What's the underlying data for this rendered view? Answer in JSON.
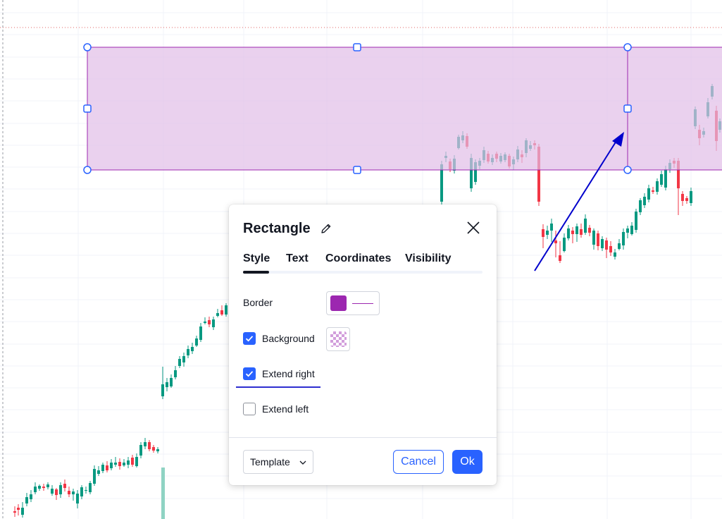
{
  "colors": {
    "up": "#089981",
    "down": "#f23645",
    "rect_border": "#9c27b0",
    "rect_fill": "#e1bee7",
    "arrow": "#0000cc",
    "handle": "#2962ff",
    "accent": "#2962ff",
    "volume": "#8fd3c3"
  },
  "chart": {
    "candles": [
      [
        21,
        725,
        727,
        718,
        733
      ],
      [
        26,
        720,
        723,
        715,
        731
      ],
      [
        32,
        730,
        720,
        712,
        734
      ],
      [
        38,
        714,
        705,
        699,
        718
      ],
      [
        44,
        708,
        701,
        695,
        712
      ],
      [
        50,
        698,
        690,
        684,
        701
      ],
      [
        56,
        693,
        689,
        687,
        696
      ],
      [
        62,
        690,
        692,
        686,
        696
      ],
      [
        68,
        691,
        687,
        684,
        694
      ],
      [
        74,
        700,
        693,
        688,
        703
      ],
      [
        80,
        694,
        702,
        692,
        709
      ],
      [
        86,
        701,
        688,
        684,
        706
      ],
      [
        92,
        686,
        692,
        680,
        697
      ],
      [
        98,
        696,
        701,
        690,
        705
      ],
      [
        104,
        701,
        697,
        693,
        710
      ],
      [
        110,
        714,
        700,
        695,
        721
      ],
      [
        116,
        704,
        691,
        688,
        708
      ],
      [
        122,
        696,
        695,
        690,
        700
      ],
      [
        128,
        698,
        685,
        682,
        701
      ],
      [
        134,
        686,
        665,
        660,
        689
      ],
      [
        140,
        672,
        667,
        661,
        675
      ],
      [
        146,
        668,
        659,
        656,
        671
      ],
      [
        152,
        660,
        667,
        654,
        670
      ],
      [
        158,
        664,
        656,
        651,
        667
      ],
      [
        164,
        659,
        656,
        648,
        662
      ],
      [
        170,
        655,
        661,
        650,
        666
      ],
      [
        176,
        660,
        656,
        651,
        662
      ],
      [
        182,
        659,
        653,
        648,
        664
      ],
      [
        188,
        649,
        659,
        645,
        662
      ],
      [
        194,
        661,
        648,
        643,
        663
      ],
      [
        200,
        646,
        631,
        627,
        650
      ],
      [
        206,
        633,
        627,
        621,
        637
      ],
      [
        212,
        627,
        637,
        624,
        640
      ],
      [
        218,
        634,
        639,
        631,
        642
      ],
      [
        224,
        640,
        637,
        634,
        643
      ],
      [
        231,
        562,
        545,
        520,
        566
      ],
      [
        237,
        549,
        542,
        536,
        555
      ],
      [
        243,
        548,
        536,
        531,
        550
      ],
      [
        249,
        535,
        525,
        519,
        538
      ],
      [
        255,
        519,
        509,
        505,
        522
      ],
      [
        261,
        514,
        505,
        500,
        520
      ],
      [
        267,
        504,
        495,
        490,
        508
      ],
      [
        273,
        498,
        492,
        486,
        502
      ],
      [
        279,
        490,
        480,
        476,
        492
      ],
      [
        285,
        482,
        463,
        458,
        485
      ],
      [
        291,
        458,
        456,
        450,
        460
      ],
      [
        297,
        454,
        460,
        449,
        464
      ],
      [
        303,
        464,
        453,
        449,
        468
      ],
      [
        309,
        448,
        444,
        438,
        450
      ],
      [
        315,
        440,
        446,
        433,
        448
      ],
      [
        321,
        446,
        433,
        430,
        449
      ],
      [
        627,
        286,
        233,
        228,
        291
      ],
      [
        633,
        224,
        221,
        215,
        230
      ],
      [
        639,
        229,
        240,
        225,
        244
      ],
      [
        645,
        242,
        225,
        220,
        246
      ],
      [
        651,
        210,
        194,
        191,
        212
      ],
      [
        657,
        199,
        192,
        186,
        203
      ],
      [
        663,
        193,
        208,
        189,
        211
      ],
      [
        669,
        267,
        224,
        218,
        272
      ],
      [
        675,
        258,
        230,
        226,
        262
      ],
      [
        681,
        235,
        228,
        224,
        240
      ],
      [
        687,
        227,
        213,
        208,
        231
      ],
      [
        693,
        218,
        229,
        214,
        232
      ],
      [
        699,
        230,
        224,
        219,
        234
      ],
      [
        705,
        218,
        225,
        215,
        230
      ],
      [
        711,
        229,
        221,
        217,
        232
      ],
      [
        717,
        227,
        219,
        216,
        230
      ],
      [
        723,
        221,
        236,
        218,
        239
      ],
      [
        729,
        233,
        226,
        222,
        241
      ],
      [
        735,
        226,
        212,
        207,
        230
      ],
      [
        741,
        219,
        223,
        213,
        231
      ],
      [
        747,
        217,
        199,
        196,
        223
      ],
      [
        753,
        211,
        206,
        200,
        214
      ],
      [
        759,
        203,
        206,
        199,
        212
      ],
      [
        765,
        208,
        286,
        204,
        292
      ],
      [
        771,
        325,
        336,
        318,
        352
      ],
      [
        777,
        333,
        327,
        320,
        339
      ],
      [
        783,
        327,
        317,
        310,
        343
      ],
      [
        789,
        341,
        345,
        327,
        365
      ],
      [
        795,
        362,
        370,
        342,
        373
      ],
      [
        801,
        356,
        337,
        331,
        358
      ],
      [
        807,
        338,
        324,
        319,
        341
      ],
      [
        813,
        327,
        332,
        322,
        345
      ],
      [
        819,
        332,
        321,
        317,
        343
      ],
      [
        825,
        325,
        333,
        317,
        337
      ],
      [
        831,
        330,
        310,
        304,
        333
      ],
      [
        837,
        323,
        330,
        319,
        335
      ],
      [
        843,
        347,
        327,
        324,
        354
      ],
      [
        849,
        331,
        349,
        327,
        355
      ],
      [
        855,
        352,
        339,
        335,
        356
      ],
      [
        861,
        341,
        354,
        337,
        366
      ],
      [
        867,
        349,
        358,
        342,
        363
      ],
      [
        873,
        364,
        358,
        353,
        368
      ],
      [
        879,
        353,
        345,
        339,
        355
      ],
      [
        885,
        348,
        329,
        324,
        354
      ],
      [
        891,
        330,
        324,
        320,
        338
      ],
      [
        897,
        332,
        320,
        315,
        334
      ],
      [
        903,
        326,
        300,
        296,
        330
      ],
      [
        909,
        301,
        284,
        281,
        305
      ],
      [
        915,
        291,
        279,
        274,
        295
      ],
      [
        921,
        283,
        267,
        262,
        287
      ],
      [
        927,
        270,
        272,
        265,
        275
      ],
      [
        933,
        272,
        257,
        253,
        276
      ],
      [
        939,
        262,
        247,
        242,
        265
      ],
      [
        945,
        266,
        240,
        235,
        270
      ],
      [
        951,
        240,
        231,
        226,
        245
      ],
      [
        957,
        228,
        232,
        224,
        238
      ],
      [
        963,
        228,
        267,
        224,
        305
      ],
      [
        969,
        275,
        285,
        271,
        292
      ],
      [
        975,
        281,
        285,
        278,
        289
      ],
      [
        981,
        288,
        271,
        266,
        292
      ],
      [
        987,
        179,
        155,
        151,
        183
      ],
      [
        993,
        184,
        196,
        177,
        206
      ],
      [
        999,
        191,
        186,
        181,
        195
      ],
      [
        1005,
        165,
        145,
        139,
        168
      ],
      [
        1011,
        137,
        122,
        119,
        141
      ],
      [
        1017,
        157,
        200,
        150,
        214
      ],
      [
        1022,
        184,
        172,
        168,
        188
      ]
    ],
    "volume_bar": {
      "value": 1
    }
  },
  "drawing": {
    "handles": 6
  },
  "dialog": {
    "title": "Rectangle",
    "tabs": [
      "Style",
      "Text",
      "Coordinates",
      "Visibility"
    ],
    "active_tab": "Style",
    "border_label": "Border",
    "background_label": "Background",
    "background_checked": true,
    "extend_right_label": "Extend right",
    "extend_right_checked": true,
    "extend_left_label": "Extend left",
    "extend_left_checked": false,
    "template_label": "Template",
    "cancel_label": "Cancel",
    "ok_label": "Ok"
  }
}
